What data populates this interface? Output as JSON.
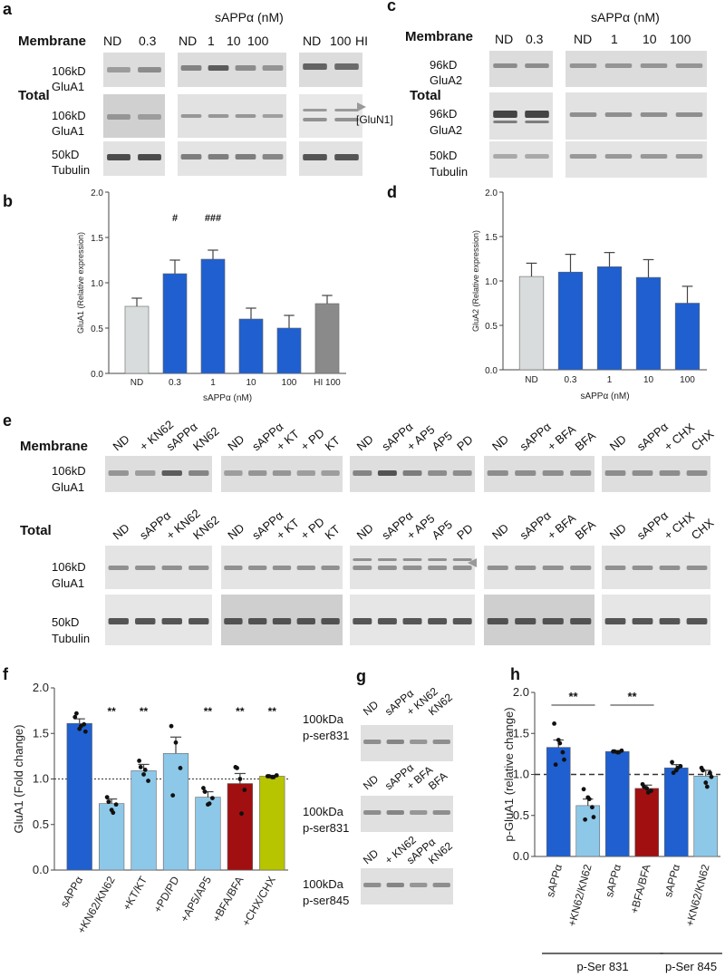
{
  "colors": {
    "dark_blue": "#1f5fcf",
    "light_blue": "#8ec8e8",
    "light_gray": "#d9dcdc",
    "mid_gray": "#8a8a8a",
    "dark_red": "#a10f10",
    "olive": "#b7c400",
    "blot_bg": "#e6e6e6",
    "blot_band": "#3b3b3b"
  },
  "panels": {
    "a": {
      "letter": "a",
      "header": "sAPPα (nM)",
      "membrane_label": "Membrane",
      "total_label": "Total",
      "col_group1": [
        "ND",
        "0.3"
      ],
      "col_group2": [
        "ND",
        "1",
        "10",
        "100"
      ],
      "col_group3": [
        "ND",
        "100",
        "HI"
      ],
      "row1_label": [
        "106kD",
        "GluA1"
      ],
      "row2_label": [
        "106kD",
        "GluA1"
      ],
      "row3_label": [
        "50kD",
        "Tubulin"
      ],
      "gluN1_label": "[GluN1]"
    },
    "c": {
      "letter": "c",
      "header": "sAPPα (nM)",
      "membrane_label": "Membrane",
      "total_label": "Total",
      "col_group1": [
        "ND",
        "0.3"
      ],
      "col_group2": [
        "ND",
        "1",
        "10",
        "100"
      ],
      "row1_label": [
        "96kD",
        "GluA2"
      ],
      "row2_label": [
        "96kD",
        "GluA2"
      ],
      "row3_label": [
        "50kD",
        "Tubulin"
      ]
    },
    "e": {
      "letter": "e",
      "membrane_label": "Membrane",
      "total_label": "Total",
      "groups": [
        [
          "ND",
          "+ KN62",
          "sAPPα",
          "KN62"
        ],
        [
          "ND",
          "sAPPα",
          "+ KT",
          "+ PD",
          "KT"
        ],
        [
          "ND",
          "sAPPα",
          "+ AP5",
          "AP5",
          "PD"
        ],
        [
          "ND",
          "sAPPα",
          "+ BFA",
          "BFA"
        ],
        [
          "ND",
          "sAPPα",
          "+ CHX",
          "CHX"
        ]
      ],
      "total_groups": [
        [
          "ND",
          "sAPPα",
          "+ KN62",
          "KN62"
        ],
        [
          "ND",
          "sAPPα",
          "+ KT",
          "+ PD",
          "KT"
        ],
        [
          "ND",
          "sAPPα",
          "+ AP5",
          "AP5",
          "PD"
        ],
        [
          "ND",
          "sAPPα",
          "+ BFA",
          "BFA"
        ],
        [
          "ND",
          "sAPPα",
          "+ CHX",
          "CHX"
        ]
      ],
      "row1_label": [
        "106kD",
        "GluA1"
      ],
      "row2_label": [
        "106kD",
        "GluA1"
      ],
      "row3_label": [
        "50kD",
        "Tubulin"
      ]
    },
    "g": {
      "letter": "g",
      "blocks": [
        {
          "lanes": [
            "ND",
            "sAPPα",
            "+ KN62",
            "KN62"
          ],
          "label": [
            "100kDa",
            "p-ser831"
          ]
        },
        {
          "lanes": [
            "ND",
            "sAPPα",
            "+ BFA",
            "BFA"
          ],
          "label": [
            "100kDa",
            "p-ser831"
          ]
        },
        {
          "lanes": [
            "ND",
            "+ KN62",
            "sAPPα",
            "KN62"
          ],
          "label": [
            "100kDa",
            "p-ser845"
          ]
        }
      ]
    }
  },
  "chart_data": [
    {
      "panel": "b",
      "type": "bar",
      "ylabel": "GluA1 (Relative expression)",
      "xlabel": "sAPPα (nM)",
      "categories": [
        "ND",
        "0.3",
        "1",
        "10",
        "100",
        "HI 100"
      ],
      "values": [
        0.74,
        1.1,
        1.26,
        0.6,
        0.5,
        0.77
      ],
      "errors": [
        0.09,
        0.15,
        0.1,
        0.12,
        0.14,
        0.09
      ],
      "bar_colors": [
        "light_gray",
        "dark_blue",
        "dark_blue",
        "dark_blue",
        "dark_blue",
        "mid_gray"
      ],
      "annotations": [
        "",
        "#",
        "###",
        "",
        "",
        ""
      ],
      "ylim": [
        0,
        2.0
      ],
      "yticks": [
        "0.0",
        "0.5",
        "1.0",
        "1.5",
        "2.0"
      ]
    },
    {
      "panel": "d",
      "type": "bar",
      "ylabel": "GluA2 (Relative expression)",
      "xlabel": "sAPPα (nM)",
      "categories": [
        "ND",
        "0.3",
        "1",
        "10",
        "100"
      ],
      "values": [
        1.05,
        1.1,
        1.16,
        1.04,
        0.75
      ],
      "errors": [
        0.15,
        0.2,
        0.16,
        0.2,
        0.19
      ],
      "bar_colors": [
        "light_gray",
        "dark_blue",
        "dark_blue",
        "dark_blue",
        "dark_blue"
      ],
      "annotations": [
        "",
        "",
        "",
        "",
        ""
      ],
      "ylim": [
        0,
        2.0
      ],
      "yticks": [
        "0.0",
        "0.5",
        "1.0",
        "1.5",
        "2.0"
      ]
    },
    {
      "panel": "f",
      "type": "bar",
      "ylabel": "GluA1 (Fold change)",
      "categories": [
        "sAPPα",
        "+KN62/KN62",
        "+KT/KT",
        "+PD/PD",
        "+AP5/AP5",
        "+BFA/BFA",
        "+CHX/CHX"
      ],
      "values": [
        1.61,
        0.73,
        1.09,
        1.28,
        0.8,
        0.95,
        1.03
      ],
      "errors": [
        0.05,
        0.05,
        0.07,
        0.18,
        0.06,
        0.11,
        0.01
      ],
      "bar_colors": [
        "dark_blue",
        "light_blue",
        "light_blue",
        "light_blue",
        "light_blue",
        "dark_red",
        "olive"
      ],
      "annotations": [
        "",
        "**",
        "**",
        "",
        "**",
        "**",
        "**"
      ],
      "points": [
        [
          1.68,
          1.55,
          1.6,
          1.72,
          1.58,
          1.52
        ],
        [
          0.8,
          0.66,
          0.72,
          0.75,
          0.63
        ],
        [
          1.2,
          1.05,
          0.98,
          1.13,
          1.1
        ],
        [
          1.58,
          1.4,
          1.12,
          0.82
        ],
        [
          0.9,
          0.72,
          0.79,
          0.86,
          0.73
        ],
        [
          1.13,
          1.0,
          0.88,
          1.12,
          0.62
        ],
        [
          1.03,
          1.02,
          1.04,
          1.03,
          1.02
        ]
      ],
      "reference_line": 1.0,
      "ylim": [
        0,
        2.0
      ],
      "yticks": [
        "0.0",
        "0.5",
        "1.0",
        "1.5",
        "2.0"
      ]
    },
    {
      "panel": "h",
      "type": "bar",
      "ylabel": "p-GluA1 (relative change)",
      "categories": [
        "sAPPα",
        "+KN62/KN62",
        "sAPPα",
        "+BFA/BFA",
        "sAPPα",
        "+KN62/KN62"
      ],
      "values": [
        1.33,
        0.62,
        1.28,
        0.83,
        1.08,
        0.98
      ],
      "errors": [
        0.09,
        0.08,
        0.01,
        0.04,
        0.04,
        0.07
      ],
      "bar_colors": [
        "dark_blue",
        "light_blue",
        "dark_blue",
        "dark_red",
        "dark_blue",
        "light_blue"
      ],
      "points": [
        [
          1.62,
          1.42,
          1.27,
          1.12,
          1.38,
          1.18
        ],
        [
          0.82,
          0.72,
          0.6,
          0.45,
          0.7,
          0.48
        ],
        [
          1.28,
          1.27,
          1.29,
          1.28,
          1.27
        ],
        [
          0.88,
          0.83,
          0.8,
          0.85,
          0.78
        ],
        [
          1.15,
          1.05,
          1.1,
          1.02,
          1.08
        ],
        [
          1.08,
          0.9,
          1.02,
          1.05,
          0.85,
          0.97
        ]
      ],
      "significance": [
        {
          "pair": [
            0,
            1
          ],
          "label": "**"
        },
        {
          "pair": [
            2,
            3
          ],
          "label": "**"
        }
      ],
      "group_labels": [
        {
          "range": [
            0,
            3
          ],
          "label": "p-Ser 831"
        },
        {
          "range": [
            4,
            5
          ],
          "label": "p-Ser 845"
        }
      ],
      "reference_line": 1.0,
      "ylim": [
        0,
        2.0
      ],
      "yticks": [
        "0.0",
        "0.5",
        "1.0",
        "1.5",
        "2.0"
      ]
    }
  ],
  "letters": {
    "b": "b",
    "d": "d",
    "f": "f",
    "h": "h"
  }
}
